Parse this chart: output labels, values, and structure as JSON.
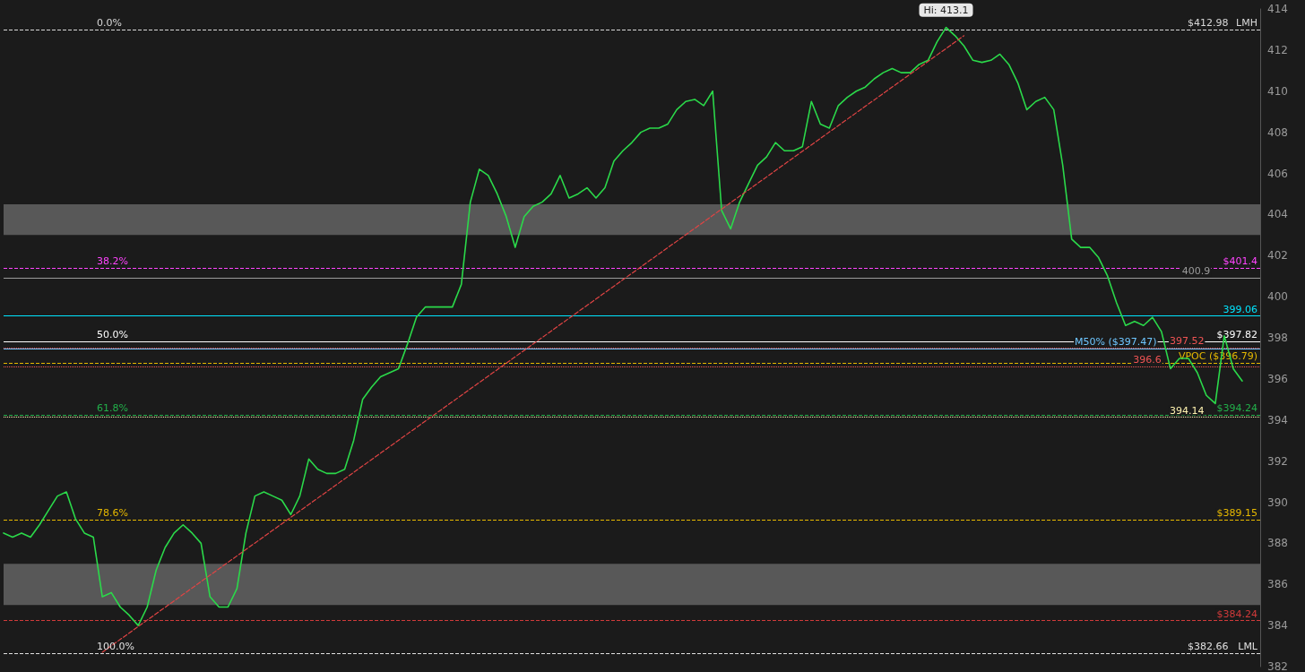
{
  "chart_data": {
    "type": "line",
    "categories": [
      null,
      null,
      null,
      null,
      null,
      null,
      null,
      null,
      null,
      null,
      null,
      null,
      null,
      null,
      null,
      null,
      null,
      null,
      null,
      null,
      null,
      null,
      null,
      null,
      null,
      null,
      null,
      null,
      null,
      null,
      null,
      null,
      null,
      null,
      null,
      null,
      null,
      null,
      null,
      null,
      null,
      null,
      null,
      null,
      null,
      null,
      null,
      null,
      null,
      null,
      null,
      null,
      null,
      null,
      null,
      null,
      null,
      null,
      null,
      null,
      null,
      null,
      null,
      null,
      null,
      null,
      null,
      null,
      null,
      null,
      null,
      null,
      null,
      null,
      null,
      null,
      null,
      null,
      null,
      null,
      null,
      null,
      null,
      null,
      null,
      null,
      null,
      null,
      null,
      null,
      null,
      null,
      null,
      null,
      null,
      null,
      null,
      null,
      null,
      null,
      null,
      null,
      null,
      null,
      null,
      null,
      null,
      null,
      null,
      null,
      null,
      null,
      null,
      null,
      null,
      null,
      null,
      null,
      null,
      null,
      null,
      null,
      null,
      null,
      null,
      null,
      null,
      null,
      null,
      null,
      null,
      null,
      null,
      null,
      null,
      null,
      null,
      null,
      null,
      null,
      null
    ],
    "series": [
      {
        "color": "#2bd94a",
        "line_style": "solid",
        "values": [
          388.5,
          388.3,
          388.5,
          388.3,
          388.9,
          389.6,
          390.3,
          390.5,
          389.2,
          388.5,
          388.3,
          385.4,
          385.6,
          384.9,
          384.5,
          384.0,
          384.9,
          386.7,
          387.8,
          388.5,
          388.9,
          388.5,
          388.0,
          385.4,
          384.9,
          384.9,
          385.8,
          388.5,
          390.3,
          390.5,
          390.3,
          390.1,
          389.4,
          390.3,
          392.1,
          391.6,
          391.4,
          391.4,
          391.6,
          393.0,
          395.0,
          395.6,
          396.1,
          396.3,
          396.5,
          397.7,
          399.0,
          399.5,
          399.5,
          399.5,
          399.5,
          400.6,
          404.6,
          406.2,
          405.9,
          405.0,
          403.9,
          402.4,
          403.9,
          404.4,
          404.6,
          405.0,
          405.9,
          404.8,
          405.0,
          405.3,
          404.8,
          405.3,
          406.6,
          407.1,
          407.5,
          408.0,
          408.2,
          408.2,
          408.4,
          409.1,
          409.5,
          409.6,
          409.3,
          410.0,
          404.2,
          403.3,
          404.6,
          405.5,
          406.4,
          406.8,
          407.5,
          407.1,
          407.1,
          407.3,
          409.5,
          408.4,
          408.2,
          409.3,
          409.7,
          410.0,
          410.2,
          410.6,
          410.9,
          411.1,
          410.9,
          410.9,
          411.3,
          411.5,
          412.4,
          413.1,
          412.7,
          412.2,
          411.5,
          411.4,
          411.5,
          411.8,
          411.3,
          410.4,
          409.1,
          409.5,
          409.7,
          409.1,
          406.4,
          402.8,
          402.4,
          402.4,
          401.9,
          401.0,
          399.7,
          398.6,
          398.8,
          398.6,
          399.0,
          398.3,
          396.5,
          397.0,
          397.0,
          396.3,
          395.2,
          394.8,
          398.1,
          396.5,
          395.9,
          null,
          null
        ]
      },
      {
        "color": "#e04444",
        "line_style": "dashed",
        "values": [
          null,
          null,
          null,
          null,
          null,
          null,
          null,
          null,
          null,
          null,
          null,
          382.7,
          null,
          null,
          null,
          null,
          null,
          null,
          null,
          null,
          null,
          null,
          null,
          null,
          null,
          null,
          null,
          null,
          null,
          null,
          null,
          null,
          null,
          null,
          null,
          null,
          null,
          null,
          null,
          null,
          null,
          null,
          null,
          null,
          null,
          null,
          null,
          null,
          null,
          null,
          null,
          null,
          null,
          null,
          null,
          null,
          null,
          null,
          null,
          null,
          null,
          null,
          null,
          null,
          null,
          null,
          null,
          null,
          null,
          null,
          null,
          null,
          null,
          null,
          null,
          null,
          null,
          null,
          null,
          null,
          null,
          null,
          null,
          null,
          null,
          null,
          null,
          null,
          null,
          null,
          null,
          null,
          null,
          null,
          null,
          null,
          null,
          null,
          null,
          null,
          null,
          null,
          null,
          null,
          null,
          null,
          null,
          412.7,
          null,
          null,
          null,
          null,
          null,
          null,
          null,
          null,
          null,
          null,
          null,
          null,
          null,
          null,
          null,
          null,
          null,
          null,
          null,
          null,
          null,
          null,
          null,
          null,
          null,
          null,
          null,
          null,
          null,
          null,
          null,
          null,
          null
        ]
      }
    ],
    "marker": "none",
    "ylim": [
      382,
      414
    ],
    "yticks": [
      382,
      384,
      386,
      388,
      390,
      392,
      394,
      396,
      398,
      400,
      402,
      404,
      406,
      408,
      410,
      412,
      414
    ],
    "grid": false,
    "tick_labels": "y",
    "ref_lines": [
      {
        "axis": "y",
        "value": 412.98,
        "label": "$412.98",
        "color": "#d8d8d8",
        "line_style": "dashed"
      },
      {
        "axis": "y",
        "value": 401.4,
        "label": "$401.4",
        "color": "#ff44ff",
        "line_style": "dashed"
      },
      {
        "axis": "y",
        "value": 400.9,
        "label": "400.9",
        "color": "#9a9a9a",
        "line_style": "solid"
      },
      {
        "axis": "y",
        "value": 399.06,
        "label": "399.06",
        "color": "#00e5ff",
        "line_style": "solid"
      },
      {
        "axis": "y",
        "value": 397.82,
        "label": "$397.82",
        "color": "#ffffff",
        "line_style": "solid"
      },
      {
        "axis": "y",
        "value": 397.52,
        "label": "397.52",
        "color": "#f05454",
        "line_style": "dotted"
      },
      {
        "axis": "y",
        "value": 397.47,
        "label": "M50% ($397.47)",
        "color": "#6ec6ff",
        "line_style": "solid"
      },
      {
        "axis": "y",
        "value": 396.79,
        "label": "VPOC ($396.79)",
        "color": "#e6b800",
        "line_style": "dashed"
      },
      {
        "axis": "y",
        "value": 396.6,
        "label": "396.6",
        "color": "#f05454",
        "line_style": "dotted"
      },
      {
        "axis": "y",
        "value": 394.24,
        "label": "$394.24",
        "color": "#22b04a",
        "line_style": "dashed"
      },
      {
        "axis": "y",
        "value": 394.14,
        "label": "394.14",
        "color": "#fff3b0",
        "line_style": "dotted"
      },
      {
        "axis": "y",
        "value": 389.15,
        "label": "$389.15",
        "color": "#e6b800",
        "line_style": "dashed"
      },
      {
        "axis": "y",
        "value": 384.24,
        "label": "$384.24",
        "color": "#d03a3a",
        "line_style": "dashed"
      },
      {
        "axis": "y",
        "value": 382.66,
        "label": "$382.66",
        "color": "#e0e0e0",
        "line_style": "dashed"
      }
    ],
    "bands": [
      {
        "axis": "y",
        "from": 403.0,
        "to": 404.5,
        "color": "#6e6e6e"
      },
      {
        "axis": "y",
        "from": 385.0,
        "to": 387.0,
        "color": "#6e6e6e"
      }
    ],
    "annotations": [
      {
        "text": "0.0%",
        "y": 412.98
      },
      {
        "text": "LMH",
        "y": 412.98
      },
      {
        "text": "38.2%",
        "y": 401.4
      },
      {
        "text": "50.0%",
        "y": 397.82
      },
      {
        "text": "61.8%",
        "y": 394.24
      },
      {
        "text": "78.6%",
        "y": 389.15
      },
      {
        "text": "100.0%",
        "y": 382.66
      },
      {
        "text": "LML",
        "y": 382.66
      },
      "Hi: 413.1"
    ]
  }
}
